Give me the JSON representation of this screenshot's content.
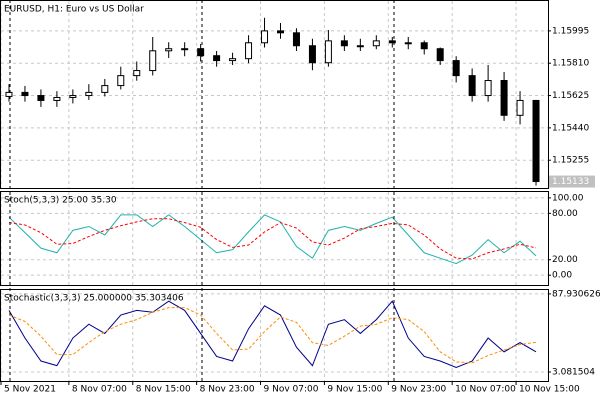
{
  "chart_data": [
    {
      "type": "candlestick",
      "title": "EURUSD, H1:  Euro vs US Dollar",
      "xlim": [
        0,
        34.25
      ],
      "ylim": [
        1.15096,
        1.16166
      ],
      "yticks": [
        {
          "value": 1.15995,
          "label": "1.15995"
        },
        {
          "value": 1.1581,
          "label": "1.15810"
        },
        {
          "value": 1.15625,
          "label": "1.15625"
        },
        {
          "value": 1.1544,
          "label": "1.15440"
        },
        {
          "value": 1.15255,
          "label": "1.15255"
        }
      ],
      "last_price": 1.15133,
      "grid": true,
      "up_color": "#ffffff",
      "down_color": "#000000",
      "open": [
        1.1562,
        1.15643,
        1.15625,
        1.15597,
        1.15614,
        1.15625,
        1.15643,
        1.15682,
        1.15739,
        1.15768,
        1.15881,
        1.15893,
        1.15893,
        1.15853,
        1.15825,
        1.15836,
        1.15927,
        1.15995,
        1.15984,
        1.1591,
        1.15813,
        1.15938,
        1.1591,
        1.1591,
        1.15938,
        1.15927,
        1.15927,
        1.15893,
        1.15825,
        1.15739,
        1.15625,
        1.15711,
        1.15512,
        1.15597
      ],
      "high": [
        1.1569,
        1.1568,
        1.1566,
        1.1565,
        1.1566,
        1.1569,
        1.1572,
        1.1579,
        1.1582,
        1.1596,
        1.1593,
        1.1593,
        1.1592,
        1.1588,
        1.1587,
        1.1597,
        1.1607,
        1.1604,
        1.1601,
        1.1595,
        1.16,
        1.1597,
        1.1595,
        1.1597,
        1.1596,
        1.1596,
        1.1594,
        1.159,
        1.1585,
        1.1578,
        1.158,
        1.1576,
        1.1565,
        1.156
      ],
      "low": [
        1.1559,
        1.1559,
        1.1556,
        1.1556,
        1.1558,
        1.156,
        1.1562,
        1.1566,
        1.1571,
        1.1574,
        1.1584,
        1.1585,
        1.1582,
        1.1579,
        1.158,
        1.1581,
        1.159,
        1.1595,
        1.1588,
        1.1577,
        1.1579,
        1.1588,
        1.1588,
        1.1589,
        1.159,
        1.1589,
        1.1586,
        1.158,
        1.157,
        1.1559,
        1.1559,
        1.1548,
        1.1546,
        1.1511
      ],
      "close": [
        1.15643,
        1.15625,
        1.15597,
        1.15614,
        1.15625,
        1.15643,
        1.15682,
        1.15739,
        1.15768,
        1.15881,
        1.15893,
        1.15893,
        1.15853,
        1.15825,
        1.15836,
        1.15927,
        1.15995,
        1.15984,
        1.1591,
        1.15813,
        1.15938,
        1.1591,
        1.1591,
        1.15938,
        1.15927,
        1.15927,
        1.15893,
        1.15825,
        1.15739,
        1.15625,
        1.15711,
        1.15512,
        1.15597,
        1.15133
      ]
    },
    {
      "type": "line",
      "title": "Stoch(5,3,3) 25.00 35.30",
      "xlim": [
        0,
        34.25
      ],
      "ylim": [
        -12.7,
        107.6
      ],
      "grid": true,
      "yticks": [
        {
          "value": 100,
          "label": "100.00"
        },
        {
          "value": 80,
          "label": "80.00"
        },
        {
          "value": 20,
          "label": "20.00"
        },
        {
          "value": 0,
          "label": "0.00"
        }
      ],
      "series": [
        {
          "color": "#20b2aa",
          "style": "solid",
          "values": [
            75,
            55,
            35,
            29,
            58,
            63,
            52,
            78,
            78,
            63,
            78,
            63,
            46,
            29,
            33,
            56,
            78,
            69,
            37,
            22,
            58,
            63,
            58,
            67,
            75,
            52,
            29,
            22,
            15,
            26,
            46,
            29,
            44,
            25
          ]
        },
        {
          "color": "#ff0000",
          "style": "dashed",
          "values": [
            68,
            65,
            55,
            40,
            41,
            50,
            58,
            64,
            69,
            73,
            73,
            68,
            62,
            46,
            36,
            39,
            56,
            68,
            61,
            43,
            39,
            48,
            60,
            63,
            67,
            65,
            52,
            34,
            22,
            21,
            29,
            34,
            40,
            35.3
          ]
        }
      ]
    },
    {
      "type": "line",
      "title": "Stochastic(3,3,3) 25.000000 35.303406",
      "xlim": [
        0,
        34.25
      ],
      "ylim": [
        -6.7,
        92.2
      ],
      "grid": true,
      "yticks": [
        87.930626,
        3.081504
      ],
      "xticks": [
        {
          "value": 0,
          "label": "5 Nov 2021"
        },
        {
          "value": 4.25,
          "label": "8 Nov 07:00"
        },
        {
          "value": 8.25,
          "label": "8 Nov 15:00"
        },
        {
          "value": 12.25,
          "label": "8 Nov 23:00"
        },
        {
          "value": 16.25,
          "label": "9 Nov 07:00"
        },
        {
          "value": 20.25,
          "label": "9 Nov 15:00"
        },
        {
          "value": 24.25,
          "label": "9 Nov 23:00"
        },
        {
          "value": 28.25,
          "label": "10 Nov 07:00"
        },
        {
          "value": 32.25,
          "label": "10 Nov 15:00"
        }
      ],
      "series": [
        {
          "color": "#00008b",
          "style": "solid",
          "values": [
            70,
            40,
            15,
            10,
            40,
            55,
            45,
            65,
            70,
            68,
            80,
            70,
            45,
            20,
            15,
            50,
            75,
            65,
            30,
            10,
            55,
            60,
            45,
            60,
            80,
            40,
            20,
            15,
            8,
            15,
            40,
            25,
            35,
            25
          ]
        },
        {
          "color": "#ff8c00",
          "style": "dashed",
          "values": [
            65,
            58,
            42,
            22,
            22,
            35,
            47,
            55,
            60,
            68,
            73,
            73,
            65,
            45,
            27,
            28,
            47,
            63,
            57,
            35,
            32,
            42,
            53,
            55,
            62,
            60,
            47,
            25,
            14,
            13,
            21,
            27,
            33,
            35.303406
          ]
        }
      ]
    }
  ]
}
